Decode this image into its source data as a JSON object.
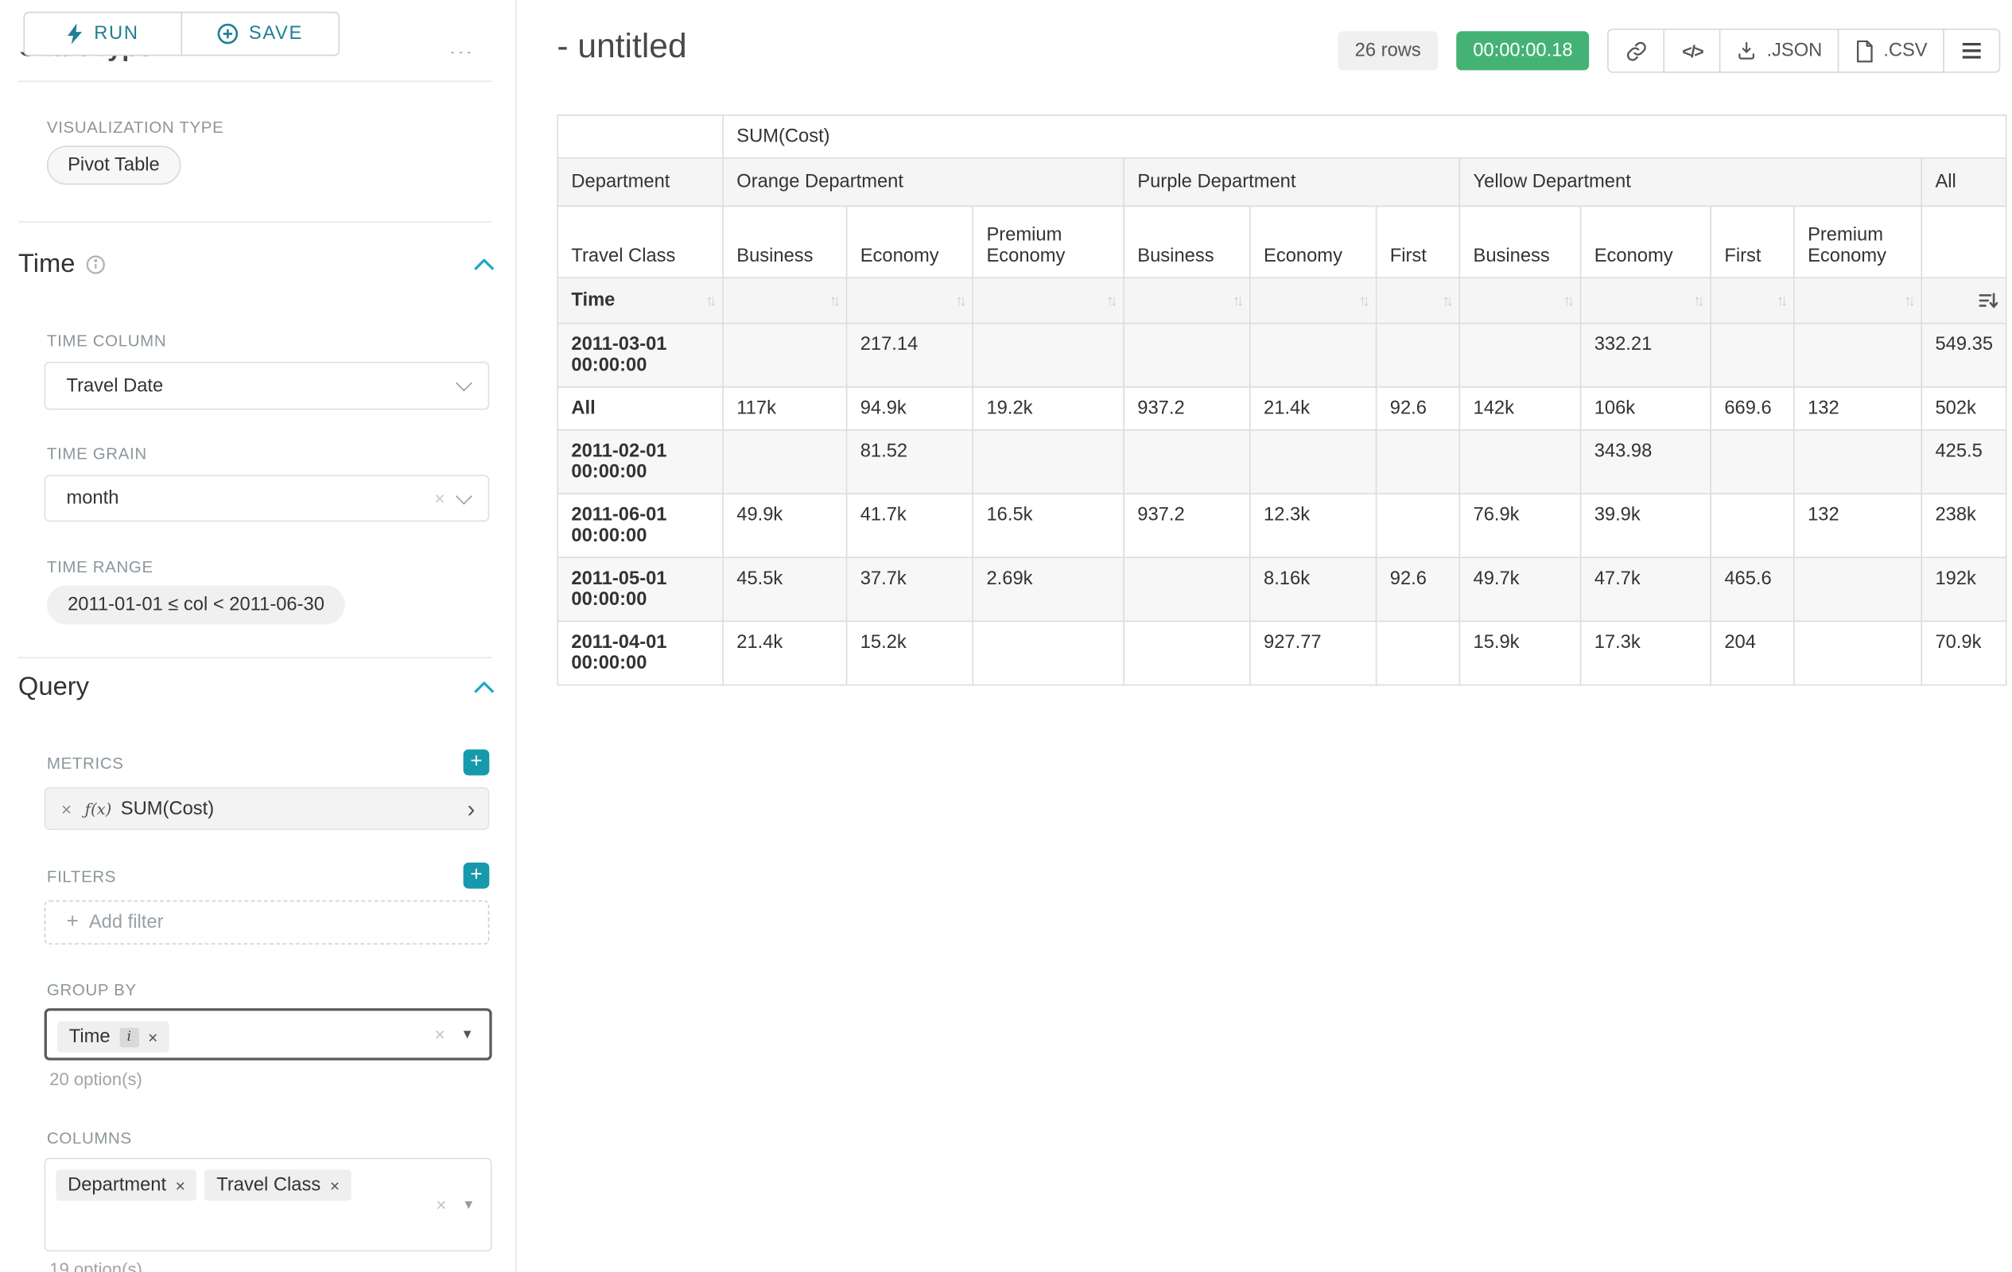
{
  "colors": {
    "accent_teal": "#1f7f95",
    "plus_button_teal": "#1699ac",
    "chevron_teal": "#20a7c9",
    "timer_green": "#44b274",
    "badge_gray": "#f0f0f0"
  },
  "icons": {
    "run": "lightning-bolt",
    "save": "plus-circle",
    "section_collapse": "chevron-up",
    "time_info": "info-circle",
    "add": "plus",
    "share": "link",
    "embed": "code",
    "json_export": "download",
    "csv_export": "file",
    "more": "hamburger-menu",
    "sort": "up-down-arrows",
    "sort_active": "sort-descending"
  },
  "sidebar": {
    "run_label": "RUN",
    "save_label": "SAVE",
    "chart_type_header": "Chart Type",
    "section_menu_dots": "…",
    "visualization_type_label": "VISUALIZATION TYPE",
    "visualization_type_value": "Pivot Table",
    "time_section": {
      "title": "Time",
      "time_column_label": "TIME COLUMN",
      "time_column_value": "Travel Date",
      "time_grain_label": "TIME GRAIN",
      "time_grain_value": "month",
      "time_range_label": "TIME RANGE",
      "time_range_value": "2011-01-01 ≤ col < 2011-06-30"
    },
    "query_section": {
      "title": "Query",
      "metrics_label": "METRICS",
      "metric_fx": "ƒ(x)",
      "metric_chip": "SUM(Cost)",
      "filters_label": "FILTERS",
      "add_filter_placeholder": "Add filter",
      "group_by_label": "GROUP BY",
      "group_by_chips": [
        {
          "label": "Time",
          "info": true
        }
      ],
      "group_by_options_count": "20 option(s)",
      "columns_label": "COLUMNS",
      "columns_chips": [
        {
          "label": "Department"
        },
        {
          "label": "Travel Class"
        }
      ],
      "columns_options_count": "19 option(s)"
    }
  },
  "header": {
    "title": "- untitled",
    "rows_badge": "26 rows",
    "timer_badge": "00:00:00.18",
    "json_label": ".JSON",
    "csv_label": ".CSV"
  },
  "pivot": {
    "metric_header": "SUM(Cost)",
    "department_header": "Department",
    "travel_class_header": "Travel Class",
    "time_header": "Time",
    "groups": [
      {
        "label": "Orange Department",
        "cols": [
          "Business",
          "Economy",
          "Premium Economy"
        ]
      },
      {
        "label": "Purple Department",
        "cols": [
          "Business",
          "Economy",
          "First"
        ]
      },
      {
        "label": "Yellow Department",
        "cols": [
          "Business",
          "Economy",
          "First",
          "Premium Economy"
        ]
      },
      {
        "label": "All",
        "cols": [
          ""
        ]
      }
    ],
    "rows": [
      {
        "label": "2011-03-01 00:00:00",
        "values": [
          "",
          "217.14",
          "",
          "",
          "",
          "",
          "",
          "332.21",
          "",
          "",
          "549.35"
        ]
      },
      {
        "label": "All",
        "values": [
          "117k",
          "94.9k",
          "19.2k",
          "937.2",
          "21.4k",
          "92.6",
          "142k",
          "106k",
          "669.6",
          "132",
          "502k"
        ]
      },
      {
        "label": "2011-02-01 00:00:00",
        "values": [
          "",
          "81.52",
          "",
          "",
          "",
          "",
          "",
          "343.98",
          "",
          "",
          "425.5"
        ]
      },
      {
        "label": "2011-06-01 00:00:00",
        "values": [
          "49.9k",
          "41.7k",
          "16.5k",
          "937.2",
          "12.3k",
          "",
          "76.9k",
          "39.9k",
          "",
          "132",
          "238k"
        ]
      },
      {
        "label": "2011-05-01 00:00:00",
        "values": [
          "45.5k",
          "37.7k",
          "2.69k",
          "",
          "8.16k",
          "92.6",
          "49.7k",
          "47.7k",
          "465.6",
          "",
          "192k"
        ]
      },
      {
        "label": "2011-04-01 00:00:00",
        "values": [
          "21.4k",
          "15.2k",
          "",
          "",
          "927.77",
          "",
          "15.9k",
          "17.3k",
          "204",
          "",
          "70.9k"
        ]
      }
    ]
  }
}
